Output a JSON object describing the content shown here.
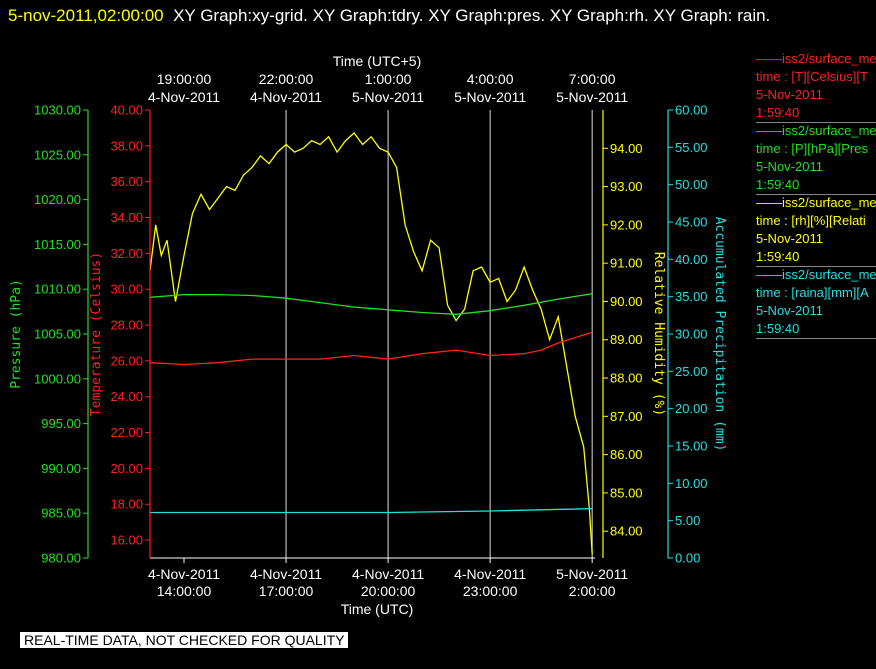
{
  "header": {
    "date": "5-nov-2011,02:00:00",
    "rest": "XY Graph:xy-grid.  XY Graph:tdry.  XY Graph:pres.  XY Graph:rh.  XY Graph: rain."
  },
  "footer": {
    "disclaimer": "REAL-TIME DATA, NOT CHECKED FOR QUALITY"
  },
  "legend": [
    {
      "name": "iss2/surface_me",
      "line2": "time : [T][Celsius][T",
      "date": "5-Nov-2011",
      "time": "1:59:40",
      "color": "#ff2020"
    },
    {
      "name": "iss2/surface_me",
      "line2": "time : [P][hPa][Pres",
      "date": "5-Nov-2011",
      "time": "1:59:40",
      "color": "#20e020"
    },
    {
      "name": "iss2/surface_me",
      "line2": "time : [rh][%][Relati",
      "date": "5-Nov-2011",
      "time": "1:59:40",
      "color": "#ffff00"
    },
    {
      "name": "iss2/surface_me",
      "line2": "time : [raina][mm][A",
      "date": "5-Nov-2011",
      "time": "1:59:40",
      "color": "#20e0e0"
    }
  ],
  "chart_data": {
    "type": "line",
    "xlim": [
      "2011-11-04 13:00",
      "2011-11-05 02:05"
    ],
    "bottom_axis": {
      "label": "Time (UTC)",
      "ticks": [
        {
          "t": "2011-11-04 14:00",
          "l1": "4-Nov-2011",
          "l2": "14:00:00"
        },
        {
          "t": "2011-11-04 17:00",
          "l1": "4-Nov-2011",
          "l2": "17:00:00"
        },
        {
          "t": "2011-11-04 20:00",
          "l1": "4-Nov-2011",
          "l2": "20:00:00"
        },
        {
          "t": "2011-11-04 23:00",
          "l1": "4-Nov-2011",
          "l2": "23:00:00"
        },
        {
          "t": "2011-11-05 02:00",
          "l1": "5-Nov-2011",
          "l2": "2:00:00"
        }
      ]
    },
    "top_axis": {
      "label": "Time (UTC+5)",
      "ticks": [
        {
          "t": "2011-11-04 14:00",
          "l1": "19:00:00",
          "l2": "4-Nov-2011"
        },
        {
          "t": "2011-11-04 17:00",
          "l1": "22:00:00",
          "l2": "4-Nov-2011"
        },
        {
          "t": "2011-11-04 20:00",
          "l1": "1:00:00",
          "l2": "5-Nov-2011"
        },
        {
          "t": "2011-11-04 23:00",
          "l1": "4:00:00",
          "l2": "5-Nov-2011"
        },
        {
          "t": "2011-11-05 02:00",
          "l1": "7:00:00",
          "l2": "5-Nov-2011"
        }
      ]
    },
    "vertical_grid": [
      "2011-11-04 17:00",
      "2011-11-04 20:00",
      "2011-11-04 23:00",
      "2011-11-05 02:00"
    ],
    "y_axes": [
      {
        "id": "pres",
        "label": "Pressure (hPa)",
        "color": "#20e020",
        "min": 980,
        "max": 1030,
        "ticks": [
          "980.00",
          "985.00",
          "990.00",
          "995.00",
          "1000.00",
          "1005.00",
          "1010.00",
          "1015.00",
          "1020.00",
          "1025.00",
          "1030.00"
        ]
      },
      {
        "id": "temp",
        "label": "Temperature (Celsius)",
        "color": "#ff2020",
        "min": 15,
        "max": 40,
        "ticks": [
          "16.00",
          "18.00",
          "20.00",
          "22.00",
          "24.00",
          "26.00",
          "28.00",
          "30.00",
          "32.00",
          "34.00",
          "36.00",
          "38.00",
          "40.00"
        ]
      },
      {
        "id": "rh",
        "label": "Relative Humidity (%)",
        "color": "#ffff00",
        "min": 83.3,
        "max": 95.0,
        "ticks": [
          "84.00",
          "85.00",
          "86.00",
          "87.00",
          "88.00",
          "89.00",
          "90.00",
          "91.00",
          "92.00",
          "93.00",
          "94.00"
        ]
      },
      {
        "id": "rain",
        "label": "Accumulated Precipitation (mm)",
        "color": "#20e0e0",
        "min": 0,
        "max": 60,
        "ticks": [
          "0.00",
          "5.00",
          "10.00",
          "15.00",
          "20.00",
          "25.00",
          "30.00",
          "35.00",
          "40.00",
          "45.00",
          "50.00",
          "55.00",
          "60.00"
        ]
      }
    ],
    "series": [
      {
        "axis": "rh",
        "color": "#ffff00",
        "x": [
          "2011-11-04 13:00",
          "2011-11-04 13:10",
          "2011-11-04 13:20",
          "2011-11-04 13:30",
          "2011-11-04 13:45",
          "2011-11-04 14:00",
          "2011-11-04 14:15",
          "2011-11-04 14:30",
          "2011-11-04 14:45",
          "2011-11-04 15:00",
          "2011-11-04 15:15",
          "2011-11-04 15:30",
          "2011-11-04 15:45",
          "2011-11-04 16:00",
          "2011-11-04 16:15",
          "2011-11-04 16:30",
          "2011-11-04 16:45",
          "2011-11-04 17:00",
          "2011-11-04 17:15",
          "2011-11-04 17:30",
          "2011-11-04 17:45",
          "2011-11-04 18:00",
          "2011-11-04 18:15",
          "2011-11-04 18:30",
          "2011-11-04 18:45",
          "2011-11-04 19:00",
          "2011-11-04 19:15",
          "2011-11-04 19:30",
          "2011-11-04 19:45",
          "2011-11-04 20:00",
          "2011-11-04 20:15",
          "2011-11-04 20:30",
          "2011-11-04 20:45",
          "2011-11-04 21:00",
          "2011-11-04 21:15",
          "2011-11-04 21:30",
          "2011-11-04 21:45",
          "2011-11-04 22:00",
          "2011-11-04 22:15",
          "2011-11-04 22:30",
          "2011-11-04 22:45",
          "2011-11-04 23:00",
          "2011-11-04 23:15",
          "2011-11-04 23:30",
          "2011-11-04 23:45",
          "2011-11-05 00:00",
          "2011-11-05 00:15",
          "2011-11-05 00:30",
          "2011-11-05 00:45",
          "2011-11-05 01:00",
          "2011-11-05 01:15",
          "2011-11-05 01:30",
          "2011-11-05 01:45",
          "2011-11-05 01:55",
          "2011-11-05 02:00"
        ],
        "y": [
          90.8,
          92.0,
          91.2,
          91.6,
          90.0,
          91.2,
          92.3,
          92.8,
          92.4,
          92.7,
          93.0,
          92.9,
          93.3,
          93.5,
          93.8,
          93.6,
          93.9,
          94.1,
          93.9,
          94.0,
          94.2,
          94.1,
          94.3,
          93.9,
          94.2,
          94.4,
          94.1,
          94.3,
          94.0,
          93.9,
          93.5,
          92.0,
          91.3,
          90.8,
          91.6,
          91.4,
          89.9,
          89.5,
          89.8,
          90.8,
          90.9,
          90.5,
          90.6,
          90.0,
          90.3,
          90.9,
          90.3,
          89.8,
          89.0,
          89.6,
          88.3,
          87.0,
          86.2,
          84.6,
          83.4
        ]
      },
      {
        "axis": "temp",
        "color": "#ff2020",
        "x": [
          "2011-11-04 13:00",
          "2011-11-04 14:00",
          "2011-11-04 15:00",
          "2011-11-04 16:00",
          "2011-11-04 17:00",
          "2011-11-04 18:00",
          "2011-11-04 19:00",
          "2011-11-04 20:00",
          "2011-11-04 21:00",
          "2011-11-04 22:00",
          "2011-11-04 23:00",
          "2011-11-05 00:00",
          "2011-11-05 00:30",
          "2011-11-05 01:00",
          "2011-11-05 01:30",
          "2011-11-05 02:00"
        ],
        "y": [
          25.9,
          25.8,
          25.9,
          26.1,
          26.1,
          26.1,
          26.3,
          26.1,
          26.4,
          26.6,
          26.3,
          26.4,
          26.6,
          27.0,
          27.3,
          27.6
        ]
      },
      {
        "axis": "pres",
        "color": "#20e020",
        "x": [
          "2011-11-04 13:00",
          "2011-11-04 14:00",
          "2011-11-04 15:00",
          "2011-11-04 16:00",
          "2011-11-04 17:00",
          "2011-11-04 18:00",
          "2011-11-04 19:00",
          "2011-11-04 20:00",
          "2011-11-04 21:00",
          "2011-11-04 22:00",
          "2011-11-04 23:00",
          "2011-11-05 00:00",
          "2011-11-05 01:00",
          "2011-11-05 02:00"
        ],
        "y": [
          1009.1,
          1009.4,
          1009.4,
          1009.3,
          1009.0,
          1008.5,
          1008.0,
          1007.7,
          1007.4,
          1007.2,
          1007.6,
          1008.2,
          1008.9,
          1009.5
        ]
      },
      {
        "axis": "rain",
        "color": "#20e0e0",
        "x": [
          "2011-11-04 13:00",
          "2011-11-04 20:00",
          "2011-11-04 23:00",
          "2011-11-05 01:55",
          "2011-11-05 02:00"
        ],
        "y": [
          6.1,
          6.1,
          6.3,
          6.6,
          6.6
        ]
      }
    ]
  }
}
